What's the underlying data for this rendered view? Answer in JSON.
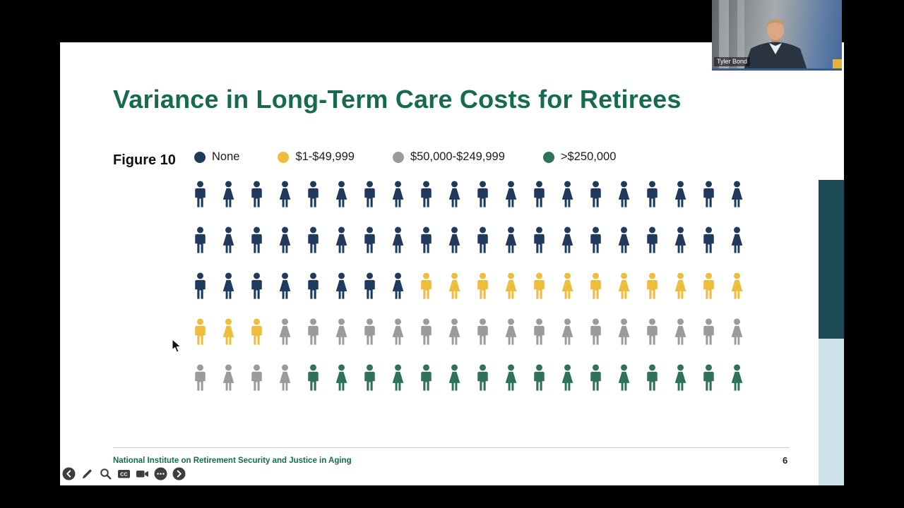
{
  "window": {
    "participant_name": "Tyler Bond"
  },
  "slide": {
    "title": "Variance in Long-Term Care Costs for Retirees",
    "figure_label": "Figure 10",
    "footer": "National Institute on Retirement Security and Justice in Aging",
    "page_number": "6"
  },
  "chart_data": {
    "type": "pictograph",
    "title": "Variance in Long-Term Care Costs for Retirees",
    "figure": "Figure 10",
    "unit": "each person icon = 1% of retirees, 100 icons total, filled row-major",
    "categories": [
      "None",
      "$1-$49,999",
      "$50,000-$249,999",
      ">$250,000"
    ],
    "values": [
      48,
      15,
      21,
      16
    ],
    "colors": [
      "#1f3a5c",
      "#eebd3e",
      "#9b9b9b",
      "#2e7257"
    ],
    "grid": {
      "rows": 5,
      "cols": 20
    },
    "legend_position": "top"
  },
  "toolbar": {
    "buttons": [
      "previous",
      "draw",
      "zoom",
      "closed-captions",
      "camera",
      "more",
      "next"
    ],
    "cc_label": "CC"
  },
  "theme": {
    "title_color": "#166a52",
    "footer_color": "#14694f",
    "accent_dark": "#1d4a57",
    "accent_light": "#cde2ea"
  }
}
